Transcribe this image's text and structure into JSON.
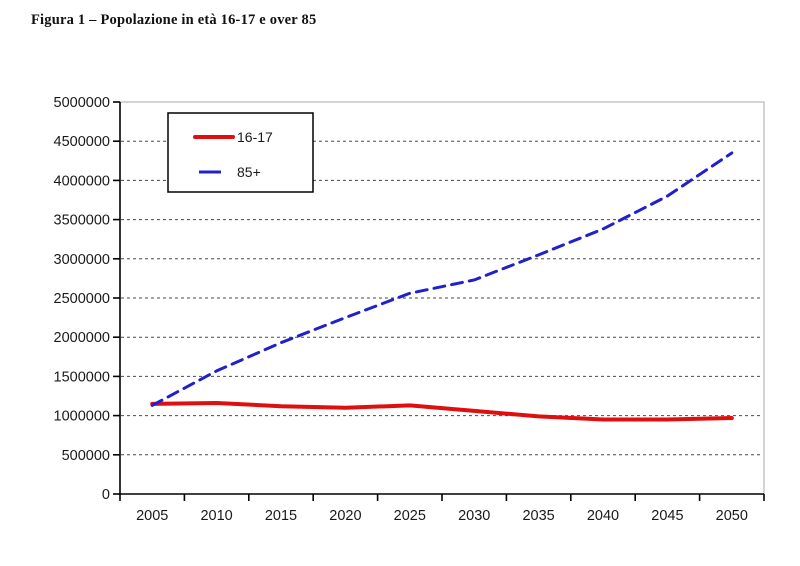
{
  "figure_title": "Figura 1 – Popolazione in età 16-17 e over 85",
  "chart_data": {
    "type": "line",
    "title": "Figura 1 – Popolazione in età 16-17 e over 85",
    "categories": [
      "2005",
      "2010",
      "2015",
      "2020",
      "2025",
      "2030",
      "2035",
      "2040",
      "2045",
      "2050"
    ],
    "series": [
      {
        "name": "16-17",
        "color": "#df0f0f",
        "style": "solid",
        "stroke_width": 4,
        "values": [
          1150000,
          1160000,
          1120000,
          1100000,
          1130000,
          1060000,
          990000,
          950000,
          950000,
          970000
        ]
      },
      {
        "name": "85+",
        "color": "#2121cb",
        "style": "dashed",
        "stroke_width": 3,
        "values": [
          1130000,
          1570000,
          1930000,
          2250000,
          2560000,
          2730000,
          3050000,
          3380000,
          3800000,
          4350000
        ]
      }
    ],
    "xlabel": "",
    "ylabel": "",
    "ylim": [
      0,
      5000000
    ],
    "ytick_step": 500000,
    "ytick_labels": [
      "0",
      "500000",
      "1000000",
      "1500000",
      "2000000",
      "2500000",
      "3000000",
      "3500000",
      "4000000",
      "4500000",
      "5000000"
    ],
    "grid": "horizontal-dashed",
    "legend_position": "top-left-inside",
    "colors": {
      "grid": "#4a4a4a",
      "axis": "#000000",
      "frame": "#a8a8a8",
      "text": "#1a1a1a",
      "background": "#ffffff"
    }
  }
}
